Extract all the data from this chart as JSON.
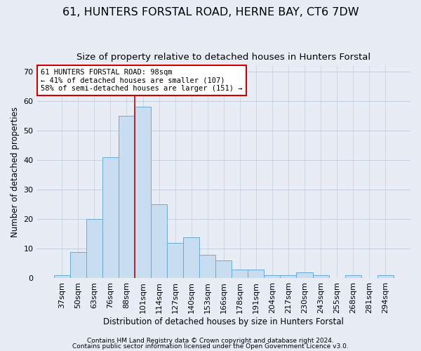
{
  "title": "61, HUNTERS FORSTAL ROAD, HERNE BAY, CT6 7DW",
  "subtitle": "Size of property relative to detached houses in Hunters Forstal",
  "xlabel": "Distribution of detached houses by size in Hunters Forstal",
  "ylabel": "Number of detached properties",
  "footnote1": "Contains HM Land Registry data © Crown copyright and database right 2024.",
  "footnote2": "Contains public sector information licensed under the Open Government Licence v3.0.",
  "annotation_line1": "61 HUNTERS FORSTAL ROAD: 98sqm",
  "annotation_line2": "← 41% of detached houses are smaller (107)",
  "annotation_line3": "58% of semi-detached houses are larger (151) →",
  "bar_labels": [
    "37sqm",
    "50sqm",
    "63sqm",
    "76sqm",
    "88sqm",
    "101sqm",
    "114sqm",
    "127sqm",
    "140sqm",
    "153sqm",
    "166sqm",
    "178sqm",
    "191sqm",
    "204sqm",
    "217sqm",
    "230sqm",
    "243sqm",
    "255sqm",
    "268sqm",
    "281sqm",
    "294sqm"
  ],
  "bar_values": [
    1,
    9,
    20,
    41,
    55,
    58,
    25,
    12,
    14,
    8,
    6,
    3,
    3,
    1,
    1,
    2,
    1,
    0,
    1,
    0,
    1
  ],
  "bar_color": "#c9ddf0",
  "bar_edge_color": "#6aaad4",
  "ylim": [
    0,
    72
  ],
  "yticks": [
    0,
    10,
    20,
    30,
    40,
    50,
    60,
    70
  ],
  "fig_background_color": "#e8edf5",
  "plot_background_color": "#e8edf5",
  "grid_color": "#c0cfe0",
  "title_fontsize": 11.5,
  "subtitle_fontsize": 9.5,
  "axis_label_fontsize": 8.5,
  "tick_fontsize": 8,
  "annotation_fontsize": 7.5,
  "footnote_fontsize": 6.5,
  "annotation_box_color": "#ffffff",
  "annotation_box_edge": "#cc0000",
  "red_line_color": "#cc0000",
  "red_line_x": 4.5
}
